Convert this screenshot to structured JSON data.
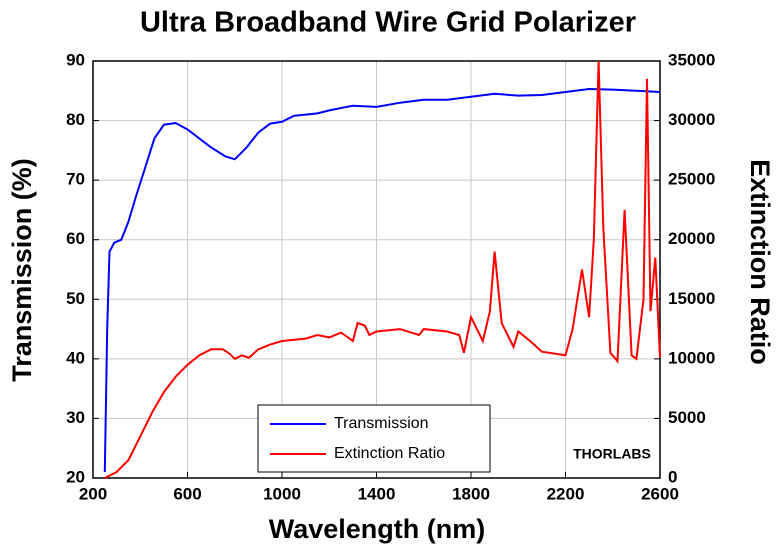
{
  "chart_data": {
    "type": "line",
    "title": "Ultra Broadband Wire Grid Polarizer",
    "xlabel": "Wavelength (nm)",
    "ylabel": "Transmission (%)",
    "y2label": "Extinction Ratio",
    "watermark": "THORLABS",
    "xlim": [
      200,
      2600
    ],
    "xticks": [
      200,
      600,
      1000,
      1400,
      1800,
      2200,
      2600
    ],
    "ylim": [
      20,
      90
    ],
    "yticks": [
      20,
      30,
      40,
      50,
      60,
      70,
      80,
      90
    ],
    "y2lim": [
      0,
      35000
    ],
    "y2ticks": [
      0,
      5000,
      10000,
      15000,
      20000,
      25000,
      30000,
      35000
    ],
    "grid": true,
    "legend": "lower center",
    "series": [
      {
        "name": "Transmission",
        "color": "#0000ff",
        "x": [
          250,
          260,
          270,
          290,
          320,
          350,
          380,
          420,
          460,
          500,
          550,
          600,
          650,
          700,
          760,
          800,
          850,
          900,
          950,
          1000,
          1050,
          1100,
          1150,
          1200,
          1300,
          1400,
          1500,
          1600,
          1700,
          1800,
          1900,
          2000,
          2100,
          2200,
          2300,
          2400,
          2500,
          2600
        ],
        "values": [
          21,
          45,
          58,
          59.5,
          60,
          63,
          67,
          72,
          77,
          79.3,
          79.6,
          78.5,
          77,
          75.5,
          74,
          73.5,
          75.5,
          78,
          79.5,
          79.8,
          80.8,
          81,
          81.2,
          81.7,
          82.5,
          82.3,
          83,
          83.5,
          83.5,
          84,
          84.5,
          84.2,
          84.3,
          84.8,
          85.3,
          85.2,
          85,
          84.8
        ]
      },
      {
        "name": "Extinction Ratio",
        "color": "#ff0000",
        "axis": "y2",
        "x": [
          250,
          300,
          350,
          400,
          450,
          500,
          550,
          600,
          650,
          700,
          750,
          780,
          800,
          830,
          860,
          900,
          950,
          1000,
          1100,
          1150,
          1200,
          1250,
          1300,
          1320,
          1350,
          1370,
          1400,
          1500,
          1580,
          1600,
          1700,
          1750,
          1770,
          1800,
          1850,
          1880,
          1900,
          1930,
          1980,
          2000,
          2050,
          2100,
          2200,
          2230,
          2270,
          2300,
          2320,
          2340,
          2360,
          2390,
          2420,
          2450,
          2480,
          2500,
          2530,
          2545,
          2560,
          2580,
          2600
        ],
        "values": [
          0,
          500,
          1500,
          3500,
          5500,
          7200,
          8500,
          9500,
          10300,
          10800,
          10800,
          10400,
          10000,
          10300,
          10100,
          10800,
          11200,
          11500,
          11700,
          12000,
          11800,
          12200,
          11500,
          13000,
          12800,
          12000,
          12300,
          12500,
          12000,
          12500,
          12300,
          12000,
          10500,
          13500,
          11500,
          14000,
          19000,
          13000,
          11000,
          12300,
          11500,
          10600,
          10300,
          12500,
          17500,
          13500,
          20000,
          35000,
          21000,
          10500,
          9800,
          22500,
          10300,
          10000,
          15000,
          33500,
          14000,
          18500,
          10100
        ]
      }
    ]
  }
}
